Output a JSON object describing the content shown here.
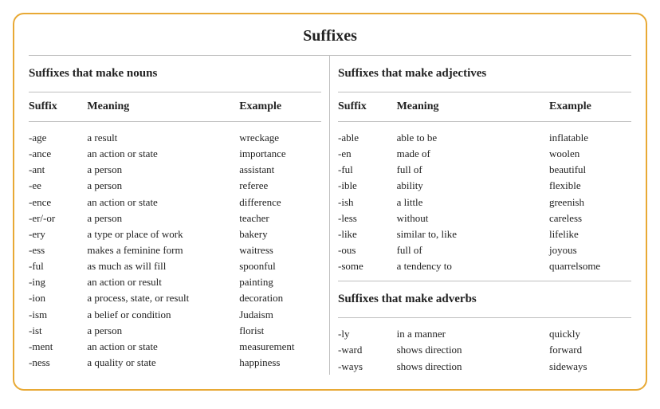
{
  "title": "Suffixes",
  "left": {
    "section": "Suffixes that make nouns",
    "headers": {
      "suffix": "Suffix",
      "meaning": "Meaning",
      "example": "Example"
    },
    "rows": [
      {
        "suffix": "-age",
        "meaning": "a result",
        "example": "wreckage"
      },
      {
        "suffix": "-ance",
        "meaning": "an action or state",
        "example": "importance"
      },
      {
        "suffix": "-ant",
        "meaning": "a person",
        "example": "assistant"
      },
      {
        "suffix": "-ee",
        "meaning": "a person",
        "example": "referee"
      },
      {
        "suffix": "-ence",
        "meaning": "an action or state",
        "example": "difference"
      },
      {
        "suffix": "-er/-or",
        "meaning": "a person",
        "example": "teacher"
      },
      {
        "suffix": "-ery",
        "meaning": "a type or place of work",
        "example": "bakery"
      },
      {
        "suffix": "-ess",
        "meaning": "makes a feminine form",
        "example": "waitress"
      },
      {
        "suffix": "-ful",
        "meaning": "as much as will fill",
        "example": "spoonful"
      },
      {
        "suffix": "-ing",
        "meaning": "an action or result",
        "example": "painting"
      },
      {
        "suffix": "-ion",
        "meaning": "a process, state, or result",
        "example": "decoration"
      },
      {
        "suffix": "-ism",
        "meaning": "a belief or condition",
        "example": "Judaism"
      },
      {
        "suffix": "-ist",
        "meaning": "a person",
        "example": "florist"
      },
      {
        "suffix": "-ment",
        "meaning": "an action or state",
        "example": "measurement"
      },
      {
        "suffix": "-ness",
        "meaning": "a quality or state",
        "example": "happiness"
      }
    ]
  },
  "right": {
    "sectionA": "Suffixes that make adjectives",
    "headersA": {
      "suffix": "Suffix",
      "meaning": "Meaning",
      "example": "Example"
    },
    "rowsA": [
      {
        "suffix": "-able",
        "meaning": "able to be",
        "example": "inflatable"
      },
      {
        "suffix": "-en",
        "meaning": "made of",
        "example": "woolen"
      },
      {
        "suffix": "-ful",
        "meaning": "full of",
        "example": "beautiful"
      },
      {
        "suffix": "-ible",
        "meaning": "ability",
        "example": "flexible"
      },
      {
        "suffix": "-ish",
        "meaning": "a little",
        "example": "greenish"
      },
      {
        "suffix": "-less",
        "meaning": "without",
        "example": "careless"
      },
      {
        "suffix": "-like",
        "meaning": "similar to, like",
        "example": "lifelike"
      },
      {
        "suffix": "-ous",
        "meaning": "full of",
        "example": "joyous"
      },
      {
        "suffix": "-some",
        "meaning": "a tendency to",
        "example": "quarrelsome"
      }
    ],
    "sectionB": "Suffixes that make adverbs",
    "rowsB": [
      {
        "suffix": "-ly",
        "meaning": "in a manner",
        "example": "quickly"
      },
      {
        "suffix": "-ward",
        "meaning": "shows direction",
        "example": "forward"
      },
      {
        "suffix": "-ways",
        "meaning": "shows direction",
        "example": "sideways"
      }
    ]
  }
}
